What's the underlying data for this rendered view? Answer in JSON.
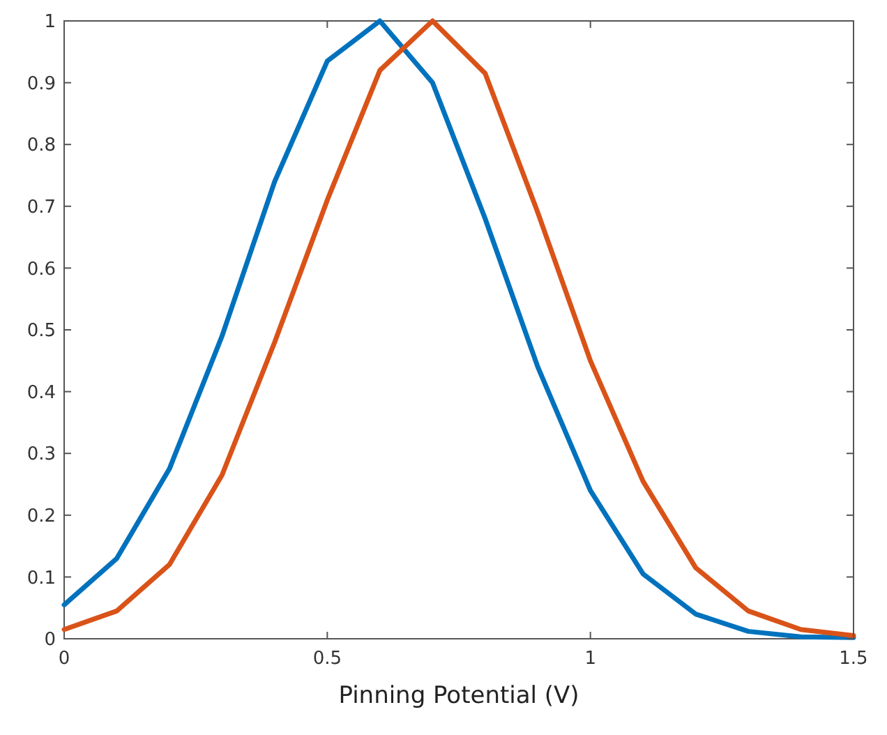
{
  "chart_data": {
    "type": "line",
    "xlabel": "Pinning Potential (V)",
    "x": [
      0,
      0.1,
      0.2,
      0.3,
      0.4,
      0.5,
      0.6,
      0.7,
      0.8,
      0.9,
      1.0,
      1.1,
      1.2,
      1.3,
      1.4,
      1.5
    ],
    "series": [
      {
        "color": "#0072bd",
        "values": [
          0.055,
          0.13,
          0.275,
          0.49,
          0.74,
          0.935,
          1.0,
          0.9,
          0.68,
          0.44,
          0.24,
          0.105,
          0.04,
          0.012,
          0.003,
          0.002
        ]
      },
      {
        "color": "#d95319",
        "values": [
          0.015,
          0.045,
          0.12,
          0.265,
          0.48,
          0.71,
          0.92,
          1.0,
          0.915,
          0.69,
          0.45,
          0.255,
          0.115,
          0.045,
          0.015,
          0.005
        ]
      }
    ],
    "xlim": [
      0,
      1.5
    ],
    "xticks": [
      0,
      0.5,
      1,
      1.5
    ],
    "ylim": [
      0,
      1
    ],
    "yticks": [
      0,
      0.1,
      0.2,
      0.3,
      0.4,
      0.5,
      0.6,
      0.7,
      0.8,
      0.9,
      1
    ],
    "grid": false,
    "marker": "none",
    "line_style": "solid"
  }
}
